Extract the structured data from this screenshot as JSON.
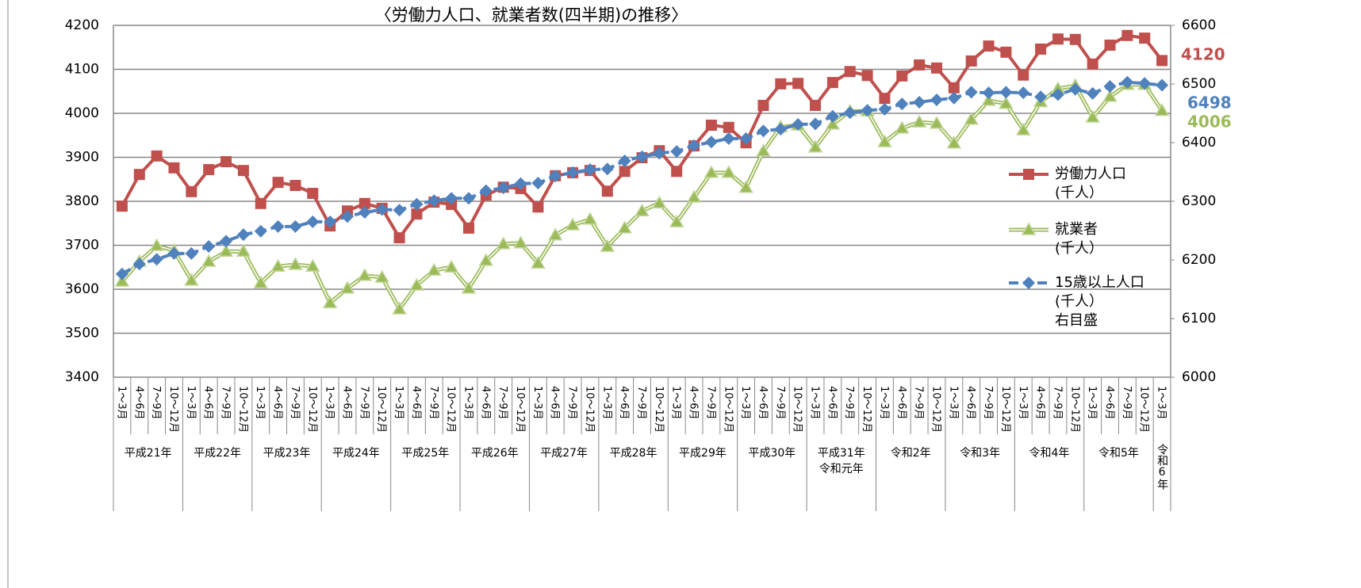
{
  "chart_data": {
    "type": "line",
    "title": "〈労働力人口、就業者数(四半期)の推移〉",
    "categories": [
      "1～3月",
      "4～6月",
      "7～9月",
      "10～12月",
      "1～3月",
      "4～6月",
      "7～9月",
      "10～12月",
      "1～3月",
      "4～6月",
      "7～9月",
      "10～12月",
      "1～3月",
      "4～6月",
      "7～9月",
      "10～12月",
      "1～3月",
      "4～6月",
      "7～9月",
      "10～12月",
      "1～3月",
      "4～6月",
      "7～9月",
      "10～12月",
      "1～3月",
      "4～6月",
      "7～9月",
      "10～12月",
      "1～3月",
      "4～6月",
      "7～9月",
      "10～12月",
      "1～3月",
      "4～6月",
      "7～9月",
      "10～12月",
      "1～3月",
      "4～6月",
      "7～9月",
      "10～12月",
      "1～3月",
      "4～6月",
      "7～9月",
      "10～12月",
      "1～3月",
      "4～6月",
      "7～9月",
      "10～12月",
      "1～3月",
      "4～6月",
      "7～9月",
      "10～12月",
      "1～3月",
      "4～6月",
      "7～9月",
      "10～12月",
      "1～3月",
      "4～6月",
      "7～9月",
      "10～12月",
      "1～3月"
    ],
    "year_labels": [
      "平成21年",
      null,
      null,
      null,
      "平成22年",
      null,
      null,
      null,
      "平成23年",
      null,
      null,
      null,
      "平成24年",
      null,
      null,
      null,
      "平成25年",
      null,
      null,
      null,
      "平成26年",
      null,
      null,
      null,
      "平成27年",
      null,
      null,
      null,
      "平成28年",
      null,
      null,
      null,
      "平成29年",
      null,
      null,
      null,
      "平成30年",
      null,
      null,
      null,
      "平成31年\n令和元年",
      null,
      null,
      null,
      "令和2年",
      null,
      null,
      null,
      "令和3年",
      null,
      null,
      null,
      "令和4年",
      null,
      null,
      null,
      "令和5年",
      null,
      null,
      null,
      "令和6年"
    ],
    "ylim": [
      3400,
      4200
    ],
    "yticks": [
      3400,
      3500,
      3600,
      3700,
      3800,
      3900,
      4000,
      4100,
      4200
    ],
    "y2lim": [
      6000,
      6600
    ],
    "y2ticks": [
      6000,
      6100,
      6200,
      6300,
      6400,
      6500,
      6600
    ],
    "grid": true,
    "legend": "right",
    "series": [
      {
        "name": "労働力人口\n(千人）",
        "color": "#c0504d",
        "marker": "square",
        "values": [
          3789,
          3861,
          3903,
          3876,
          3822,
          3872,
          3890,
          3870,
          3795,
          3843,
          3836,
          3818,
          3744,
          3778,
          3795,
          3784,
          3717,
          3771,
          3798,
          3793,
          3739,
          3814,
          3832,
          3829,
          3787,
          3858,
          3865,
          3870,
          3823,
          3868,
          3899,
          3915,
          3868,
          3926,
          3973,
          3968,
          3933,
          4018,
          4067,
          4068,
          4018,
          4070,
          4095,
          4086,
          4034,
          4085,
          4110,
          4103,
          4058,
          4119,
          4153,
          4139,
          4087,
          4146,
          4169,
          4168,
          4112,
          4155,
          4177,
          4171,
          4120
        ]
      },
      {
        "name": "就業者\n(千人）",
        "color": "#9bbb59",
        "marker": "triangle",
        "values": [
          3618,
          3663,
          3699,
          3688,
          3620,
          3663,
          3686,
          3686,
          3614,
          3652,
          3656,
          3652,
          3569,
          3602,
          3631,
          3627,
          3555,
          3609,
          3643,
          3650,
          3602,
          3665,
          3703,
          3705,
          3659,
          3723,
          3746,
          3759,
          3697,
          3739,
          3778,
          3796,
          3753,
          3809,
          3865,
          3865,
          3831,
          3914,
          3969,
          3973,
          3923,
          3975,
          4005,
          4005,
          3935,
          3966,
          3980,
          3977,
          3932,
          3986,
          4029,
          4022,
          3962,
          4026,
          4056,
          4063,
          3991,
          4038,
          4065,
          4065,
          4006
        ]
      },
      {
        "name": "15歳以上人口\n(千人）\n右目盛",
        "color": "#4f81bd",
        "marker": "diamond",
        "axis": "y2",
        "values": [
          6176,
          6193,
          6201,
          6211,
          6211,
          6223,
          6232,
          6243,
          6249,
          6257,
          6257,
          6265,
          6265,
          6274,
          6281,
          6286,
          6285,
          6295,
          6301,
          6305,
          6305,
          6318,
          6323,
          6330,
          6331,
          6343,
          6349,
          6354,
          6355,
          6369,
          6376,
          6382,
          6385,
          6395,
          6401,
          6407,
          6407,
          6420,
          6423,
          6431,
          6432,
          6445,
          6451,
          6455,
          6457,
          6466,
          6469,
          6473,
          6476,
          6486,
          6485,
          6486,
          6485,
          6478,
          6482,
          6491,
          6484,
          6496,
          6503,
          6501,
          6498
        ]
      }
    ]
  }
}
